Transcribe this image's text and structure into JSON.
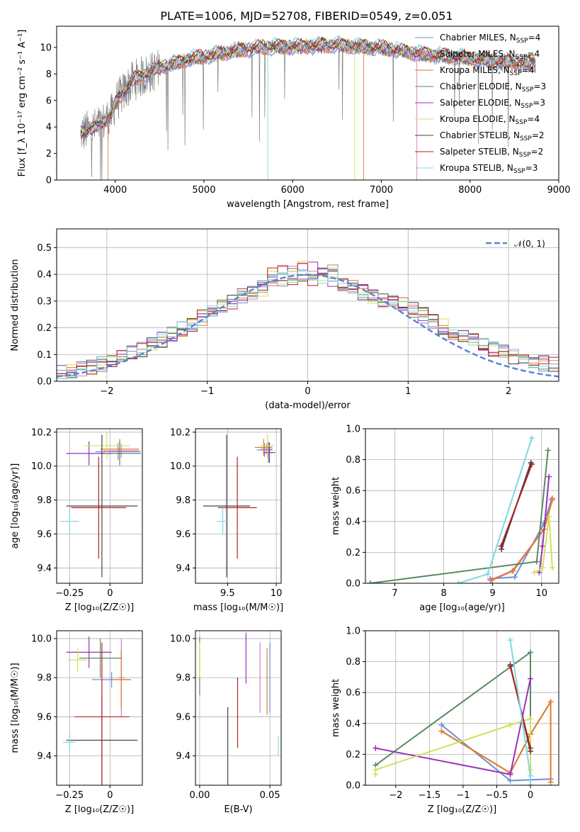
{
  "figure": {
    "title": "PLATE=1006, MJD=52708, FIBERID=0549, z=0.051"
  },
  "colors": {
    "Chabrier MILES": "#6b8fd6",
    "Salpeter MILES": "#e377c2",
    "Kroupa MILES": "#e07b2a",
    "Chabrier ELODIE": "#5a8a60",
    "Salpeter ELODIE": "#9933bb",
    "Kroupa ELODIE": "#d4e05a",
    "Chabrier STELIB": "#444444",
    "Salpeter STELIB": "#b22222",
    "Kroupa STELIB": "#7fd8e0",
    "data": "#7f7f7f",
    "normal": "#5b84d6"
  },
  "labels": {
    "spec_x": "wavelength [Angstrom, rest frame]",
    "spec_y": "Flux [f_λ 10⁻¹⁷ erg cm⁻² s⁻¹ A⁻¹]",
    "hist_x": "(data-model)/error",
    "hist_y": "Normed distribution",
    "normal_legend": "𝒩(0, 1)",
    "age_y": "age  [log₁₀(age/yr)]",
    "z_x": "Z [log₁₀(Z/Z☉)]",
    "mass_x": "mass [log₁₀(M/M☉)]",
    "mass_y": "mass [log₁₀(M/M☉)]",
    "ebv_x": "E(B-V)",
    "mw_y": "mass weight",
    "age_x": "age  [log₁₀(age/yr)]"
  },
  "legend": [
    {
      "label": "Chabrier MILES, N",
      "sub": "SSP",
      "n": "=4",
      "model": "Chabrier MILES"
    },
    {
      "label": "Salpeter MILES, N",
      "sub": "SSP",
      "n": "=4",
      "model": "Salpeter MILES"
    },
    {
      "label": "Kroupa MILES, N",
      "sub": "SSP",
      "n": "=4",
      "model": "Kroupa MILES"
    },
    {
      "label": "Chabrier ELODIE, N",
      "sub": "SSP",
      "n": "=3",
      "model": "Chabrier ELODIE"
    },
    {
      "label": "Salpeter ELODIE, N",
      "sub": "SSP",
      "n": "=3",
      "model": "Salpeter ELODIE"
    },
    {
      "label": "Kroupa ELODIE, N",
      "sub": "SSP",
      "n": "=4",
      "model": "Kroupa ELODIE"
    },
    {
      "label": "Chabrier STELIB, N",
      "sub": "SSP",
      "n": "=2",
      "model": "Chabrier STELIB"
    },
    {
      "label": "Salpeter STELIB, N",
      "sub": "SSP",
      "n": "=2",
      "model": "Salpeter STELIB"
    },
    {
      "label": "Kroupa STELIB, N",
      "sub": "SSP",
      "n": "=3",
      "model": "Kroupa STELIB"
    }
  ],
  "chart_data": [
    {
      "id": "spectrum",
      "type": "line",
      "title": "PLATE=1006, MJD=52708, FIBERID=0549, z=0.051",
      "xlabel": "wavelength [Angstrom, rest frame]",
      "ylabel": "Flux [f_λ 10⁻¹⁷ erg cm⁻² s⁻¹ A⁻¹]",
      "xlim": [
        3340,
        9000
      ],
      "ylim": [
        0,
        11.6
      ],
      "xticks": [
        4000,
        5000,
        6000,
        7000,
        8000,
        9000
      ],
      "yticks": [
        0,
        2,
        4,
        6,
        8,
        10
      ],
      "continuum": [
        [
          3600,
          3.5
        ],
        [
          3800,
          4.0
        ],
        [
          3950,
          4.8
        ],
        [
          4000,
          5.8
        ],
        [
          4200,
          7.5
        ],
        [
          4500,
          8.4
        ],
        [
          4800,
          9.0
        ],
        [
          5200,
          9.5
        ],
        [
          5600,
          9.9
        ],
        [
          6000,
          10.0
        ],
        [
          6500,
          10.1
        ],
        [
          7000,
          9.9
        ],
        [
          7500,
          9.4
        ],
        [
          8000,
          9.1
        ],
        [
          8500,
          8.8
        ],
        [
          8750,
          8.7
        ]
      ],
      "data_range": [
        3610,
        8740
      ],
      "model_range": [
        3610,
        8740
      ],
      "grid": false,
      "legend_position": "upper right"
    },
    {
      "id": "residual_hist",
      "type": "histogram",
      "xlabel": "(data-model)/error",
      "ylabel": "Normed distribution",
      "xlim": [
        -2.5,
        2.5
      ],
      "ylim": [
        0,
        0.57
      ],
      "xticks": [
        -2,
        -1,
        0,
        1,
        2
      ],
      "yticks": [
        0.0,
        0.1,
        0.2,
        0.3,
        0.4,
        0.5
      ],
      "bin_width": 0.1,
      "grid": true,
      "legend_position": "upper right"
    },
    {
      "id": "age_vs_Z",
      "type": "errorbar",
      "xlabel": "Z [log₁₀(Z/Z☉)]",
      "ylabel": "age  [log₁₀(age/yr)]",
      "xlim": [
        -0.33,
        0.2
      ],
      "ylim": [
        9.31,
        10.22
      ],
      "xticks": [
        -0.25,
        0.0
      ],
      "yticks": [
        9.4,
        9.6,
        9.8,
        10.0,
        10.2
      ],
      "points": [
        {
          "model": "Chabrier MILES",
          "x": 0.05,
          "xerr": 0.14,
          "y": 10.085,
          "yerr": 0.05
        },
        {
          "model": "Salpeter MILES",
          "x": 0.07,
          "xerr": 0.11,
          "y": 10.09,
          "yerr": 0.04
        },
        {
          "model": "Kroupa MILES",
          "x": 0.06,
          "xerr": 0.12,
          "y": 10.1,
          "yerr": 0.06
        },
        {
          "model": "Chabrier ELODIE",
          "x": 0.06,
          "xerr": 0.13,
          "y": 10.075,
          "yerr": 0.07
        },
        {
          "model": "Salpeter ELODIE",
          "x": -0.13,
          "xerr": 0.14,
          "y": 10.075,
          "yerr": 0.07
        },
        {
          "model": "Kroupa ELODIE",
          "x": -0.02,
          "xerr": 0.14,
          "y": 10.12,
          "yerr": 0.08
        },
        {
          "model": "Chabrier STELIB",
          "x": -0.05,
          "xerr": 0.22,
          "y": 9.765,
          "yerr": 0.42
        },
        {
          "model": "Salpeter STELIB",
          "x": -0.07,
          "xerr": 0.17,
          "y": 9.755,
          "yerr": 0.3
        },
        {
          "model": "Kroupa STELIB",
          "x": -0.25,
          "xerr": 0.06,
          "y": 9.675,
          "yerr": 0.08
        }
      ],
      "grid": true
    },
    {
      "id": "age_vs_mass",
      "type": "errorbar",
      "xlabel": "mass [log₁₀(M/M☉)]",
      "ylabel": "",
      "xlim": [
        9.17,
        10.05
      ],
      "ylim": [
        9.31,
        10.22
      ],
      "xticks": [
        9.5,
        10.0
      ],
      "yticks": [
        9.4,
        9.6,
        9.8,
        10.0,
        10.2
      ],
      "points": [
        {
          "model": "Chabrier MILES",
          "x": 9.88,
          "xerr": 0.08,
          "y": 10.095,
          "yerr": 0.04
        },
        {
          "model": "Salpeter MILES",
          "x": 9.9,
          "xerr": 0.06,
          "y": 10.1,
          "yerr": 0.03
        },
        {
          "model": "Kroupa MILES",
          "x": 9.87,
          "xerr": 0.09,
          "y": 10.11,
          "yerr": 0.05
        },
        {
          "model": "Chabrier ELODIE",
          "x": 9.92,
          "xerr": 0.05,
          "y": 10.08,
          "yerr": 0.06
        },
        {
          "model": "Salpeter ELODIE",
          "x": 9.93,
          "xerr": 0.06,
          "y": 10.08,
          "yerr": 0.06
        },
        {
          "model": "Kroupa ELODIE",
          "x": 9.91,
          "xerr": 0.07,
          "y": 10.12,
          "yerr": 0.07
        },
        {
          "model": "Chabrier STELIB",
          "x": 9.49,
          "xerr": 0.24,
          "y": 9.765,
          "yerr": 0.42
        },
        {
          "model": "Salpeter STELIB",
          "x": 9.6,
          "xerr": 0.2,
          "y": 9.755,
          "yerr": 0.3
        },
        {
          "model": "Kroupa STELIB",
          "x": 9.45,
          "xerr": 0.06,
          "y": 9.675,
          "yerr": 0.08
        }
      ],
      "grid": true
    },
    {
      "id": "mass_weight_vs_age",
      "type": "line",
      "xlabel": "age  [log₁₀(age/yr)]",
      "ylabel": "mass weight",
      "xlim": [
        6.4,
        10.35
      ],
      "ylim": [
        0,
        1.0
      ],
      "xticks": [
        7,
        8,
        9,
        10
      ],
      "yticks": [
        0.0,
        0.2,
        0.4,
        0.6,
        0.8,
        1.0
      ],
      "series": [
        {
          "model": "Chabrier MILES",
          "x": [
            8.95,
            9.45,
            10.05,
            10.2
          ],
          "y": [
            0.03,
            0.04,
            0.39,
            0.54
          ]
        },
        {
          "model": "Salpeter MILES",
          "x": [
            8.95,
            9.4,
            10.05,
            10.22
          ],
          "y": [
            0.02,
            0.08,
            0.35,
            0.55
          ]
        },
        {
          "model": "Kroupa MILES",
          "x": [
            8.98,
            9.42,
            10.05,
            10.22
          ],
          "y": [
            0.02,
            0.08,
            0.35,
            0.54
          ]
        },
        {
          "model": "Chabrier ELODIE",
          "x": [
            6.5,
            9.9,
            10.13
          ],
          "y": [
            0.0,
            0.14,
            0.86
          ]
        },
        {
          "model": "Salpeter ELODIE",
          "x": [
            9.95,
            10.02,
            10.15
          ],
          "y": [
            0.07,
            0.24,
            0.69
          ]
        },
        {
          "model": "Kroupa ELODIE",
          "x": [
            9.85,
            10.02,
            10.15,
            10.22
          ],
          "y": [
            0.07,
            0.1,
            0.43,
            0.1
          ]
        },
        {
          "model": "Chabrier STELIB",
          "x": [
            9.18,
            9.78
          ],
          "y": [
            0.22,
            0.78
          ]
        },
        {
          "model": "Salpeter STELIB",
          "x": [
            9.17,
            9.8
          ],
          "y": [
            0.24,
            0.77
          ]
        },
        {
          "model": "Kroupa STELIB",
          "x": [
            8.3,
            8.9,
            9.8
          ],
          "y": [
            0.0,
            0.06,
            0.94
          ]
        }
      ],
      "grid": true
    },
    {
      "id": "mass_vs_Z",
      "type": "errorbar",
      "xlabel": "Z [log₁₀(Z/Z☉)]",
      "ylabel": "mass [log₁₀(M/M☉)]",
      "xlim": [
        -0.33,
        0.2
      ],
      "ylim": [
        9.25,
        10.04
      ],
      "xticks": [
        -0.25,
        0.0
      ],
      "yticks": [
        9.4,
        9.6,
        9.8,
        10.0
      ],
      "points": [
        {
          "model": "Chabrier MILES",
          "x": 0.01,
          "xerr": 0.12,
          "y": 9.79,
          "yerr": 0.04
        },
        {
          "model": "Salpeter MILES",
          "x": 0.07,
          "xerr": 0.02,
          "y": 9.8,
          "yerr": 0.2
        },
        {
          "model": "Kroupa MILES",
          "x": 0.07,
          "xerr": 0.06,
          "y": 9.79,
          "yerr": 0.15
        },
        {
          "model": "Chabrier ELODIE",
          "x": -0.06,
          "xerr": 0.13,
          "y": 9.9,
          "yerr": 0.1
        },
        {
          "model": "Salpeter ELODIE",
          "x": -0.13,
          "xerr": 0.14,
          "y": 9.93,
          "yerr": 0.08
        },
        {
          "model": "Kroupa ELODIE",
          "x": -0.2,
          "xerr": 0.06,
          "y": 9.89,
          "yerr": 0.06
        },
        {
          "model": "Chabrier STELIB",
          "x": -0.05,
          "xerr": 0.22,
          "y": 9.48,
          "yerr": 0.22
        },
        {
          "model": "Salpeter STELIB",
          "x": -0.05,
          "xerr": 0.17,
          "y": 9.6,
          "yerr": 0.38
        },
        {
          "model": "Kroupa STELIB",
          "x": -0.25,
          "xerr": 0.04,
          "y": 9.47,
          "yerr": 0.05
        }
      ],
      "grid": true
    },
    {
      "id": "mass_vs_ebv",
      "type": "errorbar",
      "xlabel": "E(B-V)",
      "ylabel": "",
      "xlim": [
        -0.003,
        0.058
      ],
      "ylim": [
        9.25,
        10.04
      ],
      "xticks": [
        0.0,
        0.05
      ],
      "xticklabels": [
        "0.00",
        "0.05"
      ],
      "yticks": [
        9.4,
        9.6,
        9.8,
        10.0
      ],
      "points": [
        {
          "model": "Chabrier MILES",
          "x": 0.05,
          "xerr": 0,
          "y": 9.8,
          "yerr": 0.18
        },
        {
          "model": "Salpeter MILES",
          "x": 0.043,
          "xerr": 0,
          "y": 9.8,
          "yerr": 0.18
        },
        {
          "model": "Kroupa MILES",
          "x": 0.048,
          "xerr": 0,
          "y": 9.78,
          "yerr": 0.17
        },
        {
          "model": "Chabrier ELODIE",
          "x": 0.0,
          "xerr": 0,
          "y": 9.86,
          "yerr": 0.15
        },
        {
          "model": "Salpeter ELODIE",
          "x": 0.033,
          "xerr": 0,
          "y": 9.9,
          "yerr": 0.13
        },
        {
          "model": "Kroupa ELODIE",
          "x": 0.0,
          "xerr": 0,
          "y": 9.89,
          "yerr": 0.09
        },
        {
          "model": "Chabrier STELIB",
          "x": 0.02,
          "xerr": 0,
          "y": 9.44,
          "yerr": 0.21
        },
        {
          "model": "Salpeter STELIB",
          "x": 0.027,
          "xerr": 0,
          "y": 9.62,
          "yerr": 0.18
        },
        {
          "model": "Kroupa STELIB",
          "x": 0.056,
          "xerr": 0,
          "y": 9.45,
          "yerr": 0.05
        }
      ],
      "grid": true
    },
    {
      "id": "mass_weight_vs_Z",
      "type": "line",
      "xlabel": "Z [log₁₀(Z/Z☉)]",
      "ylabel": "mass weight",
      "xlim": [
        -2.45,
        0.42
      ],
      "ylim": [
        0,
        1.0
      ],
      "xticks": [
        -2.0,
        -1.5,
        -1.0,
        -0.5,
        0.0
      ],
      "yticks": [
        0.0,
        0.2,
        0.4,
        0.6,
        0.8,
        1.0
      ],
      "series": [
        {
          "model": "Chabrier MILES",
          "x": [
            -1.32,
            -0.3,
            0.3
          ],
          "y": [
            0.39,
            0.03,
            0.04
          ]
        },
        {
          "model": "Salpeter MILES",
          "x": [
            -1.32,
            -0.3,
            0.0,
            0.3
          ],
          "y": [
            0.35,
            0.08,
            0.33,
            0.54
          ]
        },
        {
          "model": "Kroupa MILES",
          "x": [
            -1.32,
            -0.3,
            0.0,
            0.3,
            0.3
          ],
          "y": [
            0.35,
            0.08,
            0.33,
            0.54,
            0.02
          ]
        },
        {
          "model": "Chabrier ELODIE",
          "x": [
            -2.3,
            0.0,
            0.0
          ],
          "y": [
            0.13,
            0.86,
            0.0
          ]
        },
        {
          "model": "Salpeter ELODIE",
          "x": [
            -2.3,
            -0.3,
            0.0
          ],
          "y": [
            0.24,
            0.07,
            0.69
          ]
        },
        {
          "model": "Kroupa ELODIE",
          "x": [
            -2.3,
            -2.3,
            -0.3,
            0.0,
            0.0
          ],
          "y": [
            0.07,
            0.1,
            0.39,
            0.43,
            0.1
          ]
        },
        {
          "model": "Chabrier STELIB",
          "x": [
            -0.3,
            0.0
          ],
          "y": [
            0.78,
            0.22
          ]
        },
        {
          "model": "Salpeter STELIB",
          "x": [
            -0.3,
            0.0
          ],
          "y": [
            0.77,
            0.24
          ]
        },
        {
          "model": "Kroupa STELIB",
          "x": [
            -0.3,
            0.0,
            0.0
          ],
          "y": [
            0.94,
            0.06,
            0.0
          ]
        }
      ],
      "grid": true
    }
  ]
}
